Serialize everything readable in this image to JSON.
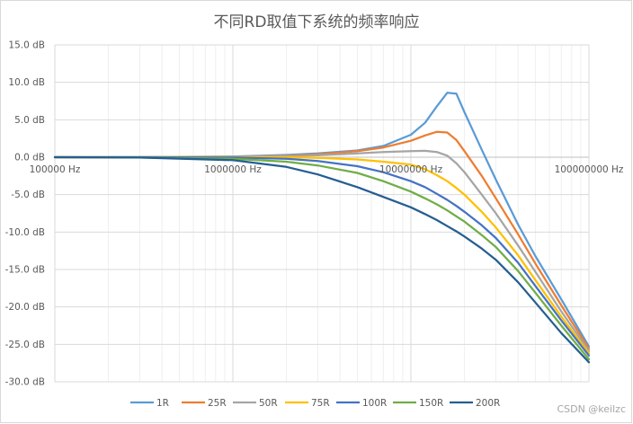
{
  "chart_data": {
    "type": "line",
    "title": "不同RD取值下系统的频率响应",
    "xscale": "log",
    "xlim": [
      100000,
      100000000
    ],
    "ylim": [
      -30,
      15
    ],
    "grid": true,
    "legend_position": "bottom",
    "x_tick_labels": [
      "100000 Hz",
      "1000000 Hz",
      "10000000 Hz",
      "100000000 Hz"
    ],
    "y_tick_labels": [
      "15.0 dB",
      "10.0 dB",
      "5.0 dB",
      "0.0 dB",
      "-5.0 dB",
      "-10.0 dB",
      "-15.0 dB",
      "-20.0 dB",
      "-25.0 dB",
      "-30.0 dB"
    ],
    "x": [
      100000,
      300000,
      1000000,
      2000000,
      3000000,
      5000000,
      7000000,
      10000000,
      12000000,
      14000000,
      16000000,
      18000000,
      20000000,
      25000000,
      30000000,
      40000000,
      50000000,
      70000000,
      100000000
    ],
    "series": [
      {
        "name": "1R",
        "color": "#5b9bd5",
        "values": [
          0,
          0,
          0.1,
          0.3,
          0.5,
          0.9,
          1.5,
          3.0,
          4.6,
          6.8,
          8.6,
          8.5,
          6.0,
          1.0,
          -3.0,
          -9.0,
          -13.2,
          -19.0,
          -25.3
        ]
      },
      {
        "name": "25R",
        "color": "#ed7d31",
        "values": [
          0,
          0,
          0.05,
          0.2,
          0.4,
          0.8,
          1.3,
          2.2,
          2.9,
          3.4,
          3.3,
          2.3,
          0.8,
          -2.5,
          -5.5,
          -10.3,
          -14.2,
          -19.8,
          -25.6
        ]
      },
      {
        "name": "50R",
        "color": "#a5a5a5",
        "values": [
          0,
          0,
          0.02,
          0.15,
          0.25,
          0.5,
          0.7,
          0.8,
          0.85,
          0.7,
          0.2,
          -0.8,
          -2.0,
          -5.0,
          -7.5,
          -11.8,
          -15.3,
          -20.6,
          -25.9
        ]
      },
      {
        "name": "75R",
        "color": "#ffc000",
        "values": [
          0,
          0,
          0,
          0,
          -0.1,
          -0.3,
          -0.6,
          -1.0,
          -1.6,
          -2.4,
          -3.2,
          -4.1,
          -5.0,
          -7.3,
          -9.4,
          -13.1,
          -16.4,
          -21.3,
          -26.2
        ]
      },
      {
        "name": "100R",
        "color": "#4472c4",
        "values": [
          0,
          0,
          -0.05,
          -0.2,
          -0.5,
          -1.2,
          -2.0,
          -3.2,
          -4.0,
          -4.9,
          -5.7,
          -6.5,
          -7.3,
          -9.1,
          -10.8,
          -14.1,
          -17.2,
          -21.8,
          -26.5
        ]
      },
      {
        "name": "150R",
        "color": "#70ad47",
        "values": [
          0,
          -0.05,
          -0.2,
          -0.6,
          -1.1,
          -2.1,
          -3.2,
          -4.6,
          -5.5,
          -6.3,
          -7.1,
          -7.9,
          -8.6,
          -10.4,
          -12.0,
          -15.2,
          -18.1,
          -22.5,
          -27.0
        ]
      },
      {
        "name": "200R",
        "color": "#255e91",
        "values": [
          0,
          -0.05,
          -0.4,
          -1.3,
          -2.3,
          -4.0,
          -5.3,
          -6.7,
          -7.6,
          -8.4,
          -9.2,
          -9.9,
          -10.6,
          -12.2,
          -13.7,
          -16.7,
          -19.4,
          -23.5,
          -27.4
        ]
      }
    ]
  },
  "watermark": "CSDN @keilzc"
}
